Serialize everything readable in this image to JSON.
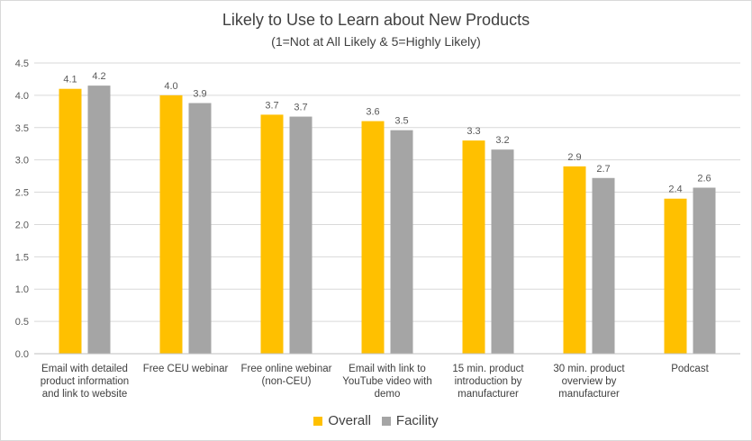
{
  "chart_data": {
    "type": "bar",
    "title": "Likely to Use to Learn about New Products",
    "subtitle": "(1=Not at All Likely & 5=Highly Likely)",
    "categories": [
      [
        "Email with detailed",
        "product information",
        "and link to website"
      ],
      [
        "Free CEU webinar"
      ],
      [
        "Free online webinar",
        "(non-CEU)"
      ],
      [
        "Email with link to",
        "YouTube video with",
        "demo"
      ],
      [
        "15 min. product",
        "introduction by",
        "manufacturer"
      ],
      [
        "30 min. product",
        "overview by",
        "manufacturer"
      ],
      [
        "Podcast"
      ]
    ],
    "series": [
      {
        "name": "Overall",
        "color": "#FFC000",
        "values": [
          4.1,
          4.0,
          3.7,
          3.6,
          3.3,
          2.9,
          2.4
        ],
        "labels": [
          "4.1",
          "4.0",
          "3.7",
          "3.6",
          "3.3",
          "2.9",
          "2.4"
        ]
      },
      {
        "name": "Facility",
        "color": "#A5A5A5",
        "values": [
          4.15,
          3.88,
          3.67,
          3.46,
          3.16,
          2.72,
          2.57
        ],
        "labels": [
          "4.2",
          "3.9",
          "3.7",
          "3.5",
          "3.2",
          "2.7",
          "2.6"
        ]
      }
    ],
    "ylim": [
      0,
      4.5
    ],
    "yticks": [
      "0.0",
      "0.5",
      "1.0",
      "1.5",
      "2.0",
      "2.5",
      "3.0",
      "3.5",
      "4.0",
      "4.5"
    ],
    "grid": true,
    "legend_position": "bottom"
  }
}
